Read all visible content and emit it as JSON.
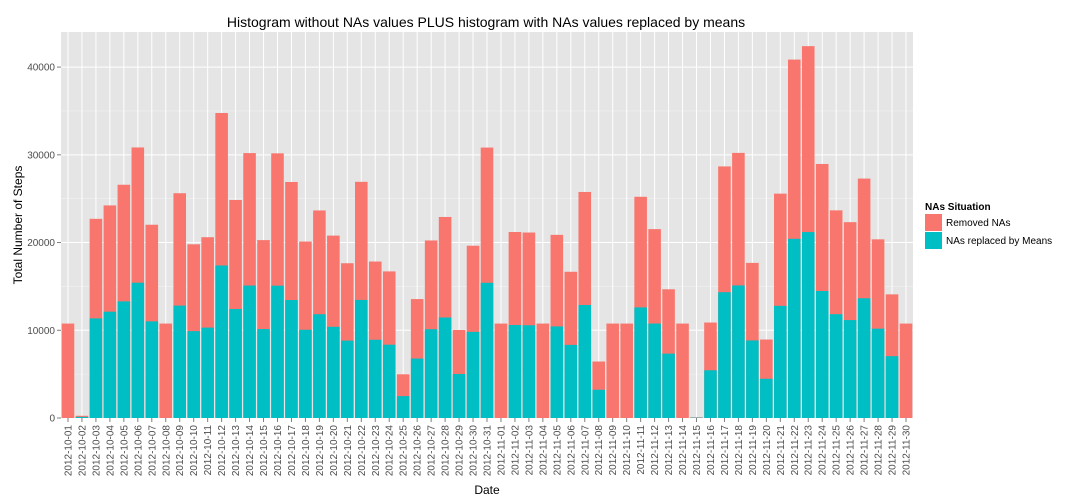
{
  "chart_data": {
    "type": "bar",
    "stacked": true,
    "title": "Histogram without NAs values PLUS histogram with NAs values replaced by means",
    "xlabel": "Date",
    "ylabel": "Total Number of Steps",
    "ylim": [
      0,
      44000
    ],
    "yticks": [
      0,
      10000,
      20000,
      30000,
      40000
    ],
    "grid": true,
    "legend": {
      "title": "NAs Situation",
      "position": "right"
    },
    "categories": [
      "2012-10-01",
      "2012-10-02",
      "2012-10-03",
      "2012-10-04",
      "2012-10-05",
      "2012-10-06",
      "2012-10-07",
      "2012-10-08",
      "2012-10-09",
      "2012-10-10",
      "2012-10-11",
      "2012-10-12",
      "2012-10-13",
      "2012-10-14",
      "2012-10-15",
      "2012-10-16",
      "2012-10-17",
      "2012-10-18",
      "2012-10-19",
      "2012-10-20",
      "2012-10-21",
      "2012-10-22",
      "2012-10-23",
      "2012-10-24",
      "2012-10-25",
      "2012-10-26",
      "2012-10-27",
      "2012-10-28",
      "2012-10-29",
      "2012-10-30",
      "2012-10-31",
      "2012-11-01",
      "2012-11-02",
      "2012-11-03",
      "2012-11-04",
      "2012-11-05",
      "2012-11-06",
      "2012-11-07",
      "2012-11-08",
      "2012-11-09",
      "2012-11-10",
      "2012-11-11",
      "2012-11-12",
      "2012-11-13",
      "2012-11-14",
      "2012-11-15",
      "2012-11-16",
      "2012-11-17",
      "2012-11-18",
      "2012-11-19",
      "2012-11-20",
      "2012-11-21",
      "2012-11-22",
      "2012-11-23",
      "2012-11-24",
      "2012-11-25",
      "2012-11-26",
      "2012-11-27",
      "2012-11-28",
      "2012-11-29",
      "2012-11-30"
    ],
    "tick_labels": [
      "2012-10-01",
      "2012-10-03",
      "2012-10-05",
      "2012-10-07",
      "2012-10-09",
      "2012-10-11",
      "2012-10-13",
      "2012-10-15",
      "2012-10-17",
      "2012-10-19",
      "2012-10-21",
      "2012-10-23",
      "2012-10-25",
      "2012-10-27",
      "2012-10-29",
      "2012-10-31",
      "2012-11-02",
      "2012-11-04",
      "2012-11-06",
      "2012-11-08",
      "2012-11-10",
      "2012-11-12",
      "2012-11-14",
      "2012-11-16",
      "2012-11-18",
      "2012-11-20",
      "2012-11-22",
      "2012-11-24",
      "2012-11-26",
      "2012-11-28",
      "2012-11-30",
      "2012-10-02",
      "2012-10-04",
      "2012-10-06",
      "2012-10-08",
      "2012-10-10",
      "2012-10-12",
      "2012-10-14",
      "2012-10-16",
      "2012-10-18",
      "2012-10-20",
      "2012-10-22",
      "2012-10-24",
      "2012-10-26",
      "2012-10-28",
      "2012-10-30",
      "2012-11-01",
      "2012-11-03",
      "2012-11-05",
      "2012-11-07",
      "2012-11-09",
      "2012-11-11",
      "2012-11-13",
      "2012-11-15",
      "2012-11-17",
      "2012-11-19",
      "2012-11-21",
      "2012-11-23",
      "2012-11-25",
      "2012-11-27",
      "2012-11-29"
    ],
    "series": [
      {
        "name": "Removed NAs",
        "color": "#f8766d",
        "values": [
          0,
          126,
          11352,
          12116,
          13294,
          15420,
          11015,
          0,
          12811,
          9900,
          10304,
          17382,
          12426,
          15098,
          10139,
          15084,
          13452,
          10056,
          11829,
          10395,
          8821,
          13460,
          8918,
          8355,
          2492,
          6778,
          10119,
          11458,
          5018,
          9819,
          15414,
          0,
          10600,
          10571,
          0,
          10439,
          8334,
          12883,
          3219,
          0,
          0,
          12608,
          10765,
          7336,
          0,
          41,
          5441,
          14339,
          15110,
          8841,
          4472,
          12787,
          20427,
          21194,
          14478,
          11834,
          11162,
          13646,
          10183,
          7047,
          0
        ]
      },
      {
        "name": "NAs replaced by Means",
        "color": "#00bfc4",
        "values": [
          10766,
          126,
          11352,
          12116,
          13294,
          15420,
          11015,
          10766,
          12811,
          9900,
          10304,
          17382,
          12426,
          15098,
          10139,
          15084,
          13452,
          10056,
          11829,
          10395,
          8821,
          13460,
          8918,
          8355,
          2492,
          6778,
          10119,
          11458,
          5018,
          9819,
          15414,
          10766,
          10600,
          10571,
          10766,
          10439,
          8334,
          12883,
          3219,
          10766,
          10766,
          12608,
          10765,
          7336,
          10766,
          41,
          5441,
          14339,
          15110,
          8841,
          4472,
          12787,
          20427,
          21194,
          14478,
          11834,
          11162,
          13646,
          10183,
          7047,
          10766
        ]
      }
    ]
  }
}
